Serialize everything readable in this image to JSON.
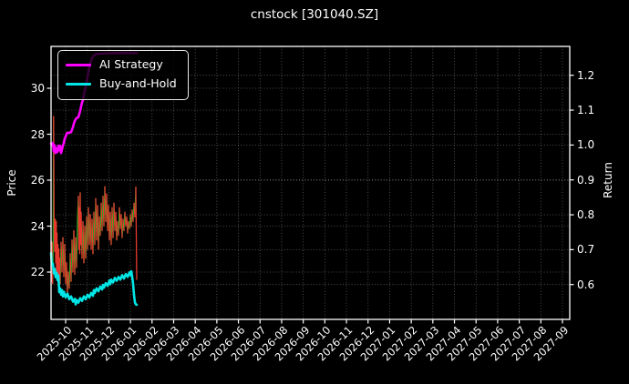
{
  "title": "cnstock [301040.SZ]",
  "colors": {
    "background": "#000000",
    "spine": "#ffffff",
    "grid": "rgba(255,255,255,0.38)",
    "tick_text": "#ffffff",
    "ai_strategy": "#ff00ff",
    "buy_and_hold": "#00e5e5",
    "price_up": "#21a421",
    "price_down": "#e8392e"
  },
  "legend": {
    "items": [
      {
        "label": "AI Strategy",
        "color": "#ff00ff"
      },
      {
        "label": "Buy-and-Hold",
        "color": "#00e5e5"
      }
    ]
  },
  "axes": {
    "y_left": {
      "label": "Price",
      "tick_labels": [
        "30",
        "28",
        "26",
        "24",
        "22"
      ],
      "tick_values": [
        30,
        28,
        26,
        24,
        22
      ],
      "range": [
        19.9,
        31.8
      ]
    },
    "y_right": {
      "label": "Return",
      "tick_labels": [
        "1.2",
        "1.1",
        "1.0",
        "0.9",
        "0.8",
        "0.7",
        "0.6"
      ],
      "tick_values": [
        1.2,
        1.1,
        1.0,
        0.9,
        0.8,
        0.7,
        0.6
      ],
      "range": [
        0.5,
        1.28
      ]
    },
    "x": {
      "tick_labels": [
        "2025-10",
        "2025-11",
        "2025-12",
        "2026-01",
        "2026-02",
        "2026-03",
        "2026-04",
        "2026-05",
        "2026-06",
        "2026-07",
        "2026-08",
        "2026-09",
        "2026-10",
        "2026-11",
        "2026-12",
        "2027-01",
        "2027-02",
        "2027-03",
        "2027-04",
        "2027-05",
        "2027-06",
        "2027-07",
        "2027-08",
        "2027-09"
      ]
    }
  },
  "chart_data": {
    "type": "line",
    "title": "cnstock [301040.SZ]",
    "xlabel": "",
    "grid": true,
    "legend_position": "upper-left",
    "series": [
      {
        "name": "Price",
        "y_axis": "left",
        "style": "direction-colored-line",
        "up_color": "#21a421",
        "down_color": "#e8392e",
        "u": [
          0,
          0.001,
          0.002,
          0.003,
          0.004,
          0.005,
          0.006,
          0.007,
          0.008,
          0.009,
          0.01,
          0.0105,
          0.0114,
          0.0123,
          0.0132,
          0.0141,
          0.0149,
          0.0158,
          0.0167,
          0.0176,
          0.0193,
          0.0211,
          0.0228,
          0.0246,
          0.0264,
          0.0281,
          0.0299,
          0.0316,
          0.0334,
          0.0352,
          0.0369,
          0.0387,
          0.0404,
          0.0422,
          0.0439,
          0.0457,
          0.0475,
          0.0492,
          0.051,
          0.0527,
          0.0536,
          0.0545,
          0.0554,
          0.0562,
          0.0571,
          0.058,
          0.0598,
          0.0615,
          0.0633,
          0.065,
          0.0668,
          0.0685,
          0.0703,
          0.0721,
          0.0738,
          0.0756,
          0.0773,
          0.0791,
          0.0808,
          0.0826,
          0.0844,
          0.0861,
          0.0879,
          0.0896,
          0.0914,
          0.0931,
          0.0949,
          0.0967,
          0.0984,
          0.1002,
          0.1019,
          0.1037,
          0.1054,
          0.1072,
          0.109,
          0.1107,
          0.1125,
          0.1142,
          0.116,
          0.1177,
          0.1195,
          0.1213,
          0.123,
          0.1248,
          0.1265,
          0.1283,
          0.13,
          0.1318,
          0.1336,
          0.1353,
          0.1371,
          0.1388,
          0.1406,
          0.1423,
          0.1441,
          0.1459,
          0.1476,
          0.1494,
          0.1511,
          0.1529,
          0.1546,
          0.1564,
          0.1582,
          0.1599,
          0.1617,
          0.1634,
          0.1652
        ],
        "values": [
          23.4,
          21.6,
          23.3,
          21.5,
          22.8,
          28.77,
          24.0,
          22.9,
          24.3,
          22.4,
          24.2,
          22.0,
          23.7,
          21.8,
          23.2,
          21.7,
          23.0,
          21.6,
          22.6,
          21.5,
          23.3,
          22.0,
          23.5,
          21.8,
          23.2,
          21.5,
          22.4,
          21.1,
          22.0,
          21.3,
          22.8,
          21.6,
          23.4,
          22.0,
          23.8,
          21.9,
          23.5,
          22.2,
          24.3,
          25.3,
          23.0,
          24.8,
          22.8,
          25.45,
          23.2,
          24.6,
          22.6,
          24.2,
          22.4,
          24.0,
          22.6,
          24.4,
          23.0,
          24.8,
          23.2,
          24.5,
          23.0,
          24.3,
          22.8,
          24.6,
          23.2,
          25.2,
          23.4,
          24.9,
          23.0,
          24.4,
          23.6,
          25.0,
          23.8,
          25.3,
          24.0,
          25.72,
          24.2,
          25.4,
          23.8,
          24.9,
          23.4,
          24.6,
          23.2,
          24.8,
          23.5,
          25.0,
          23.8,
          24.6,
          23.4,
          24.2,
          23.6,
          24.8,
          23.9,
          24.5,
          23.5,
          24.3,
          23.8,
          24.6,
          24.0,
          24.4,
          23.7,
          24.2,
          23.9,
          24.5,
          24.0,
          24.7,
          24.2,
          25.0,
          24.4,
          25.7,
          21.68
        ]
      },
      {
        "name": "AI Strategy",
        "y_axis": "right",
        "color": "#ff00ff",
        "u": [
          0,
          0.0018,
          0.0035,
          0.0053,
          0.007,
          0.0088,
          0.0105,
          0.0123,
          0.0141,
          0.0158,
          0.0176,
          0.0193,
          0.0211,
          0.0228,
          0.0246,
          0.0264,
          0.0281,
          0.0299,
          0.0316,
          0.0352,
          0.0387,
          0.0422,
          0.0439,
          0.0457,
          0.0475,
          0.0492,
          0.0527,
          0.0562,
          0.058,
          0.0598,
          0.0615,
          0.0633,
          0.065,
          0.0668,
          0.0685,
          0.0703,
          0.0721,
          0.0738,
          0.0756,
          0.0773,
          0.0791,
          0.0808,
          0.0826,
          0.0861,
          0.0949,
          0.1125,
          0.1388,
          0.1652
        ],
        "values": [
          1.004,
          0.999,
          1.006,
          0.982,
          0.999,
          0.977,
          0.99,
          0.98,
          0.998,
          0.985,
          0.998,
          0.977,
          0.987,
          0.998,
          1.006,
          1.019,
          1.024,
          1.032,
          1.035,
          1.035,
          1.037,
          1.051,
          1.061,
          1.069,
          1.074,
          1.077,
          1.08,
          1.098,
          1.111,
          1.122,
          1.129,
          1.143,
          1.158,
          1.166,
          1.182,
          1.195,
          1.21,
          1.223,
          1.234,
          1.241,
          1.249,
          1.254,
          1.257,
          1.26,
          1.262,
          1.263,
          1.264,
          1.264
        ]
      },
      {
        "name": "Buy-and-Hold",
        "y_axis": "right",
        "color": "#00e5e5",
        "u": [
          0,
          0.0018,
          0.0035,
          0.0053,
          0.007,
          0.0088,
          0.0105,
          0.0123,
          0.0141,
          0.0158,
          0.0176,
          0.0193,
          0.0211,
          0.0228,
          0.0246,
          0.0281,
          0.0316,
          0.0352,
          0.0387,
          0.0422,
          0.0457,
          0.0475,
          0.0492,
          0.0527,
          0.0562,
          0.0598,
          0.0633,
          0.0668,
          0.0703,
          0.0738,
          0.0773,
          0.0808,
          0.0826,
          0.0844,
          0.0879,
          0.0914,
          0.0949,
          0.0984,
          0.1002,
          0.1019,
          0.1054,
          0.109,
          0.1125,
          0.1142,
          0.116,
          0.1195,
          0.123,
          0.1265,
          0.13,
          0.1336,
          0.1371,
          0.1406,
          0.1441,
          0.1476,
          0.1511,
          0.1529,
          0.1546,
          0.1564,
          0.1582,
          0.1599,
          0.1617,
          0.1634,
          0.1652
        ],
        "values": [
          0.69,
          0.655,
          0.66,
          0.632,
          0.645,
          0.621,
          0.634,
          0.613,
          0.626,
          0.578,
          0.589,
          0.571,
          0.584,
          0.566,
          0.579,
          0.563,
          0.574,
          0.558,
          0.566,
          0.551,
          0.559,
          0.543,
          0.556,
          0.548,
          0.561,
          0.553,
          0.566,
          0.558,
          0.571,
          0.563,
          0.576,
          0.568,
          0.584,
          0.576,
          0.589,
          0.581,
          0.594,
          0.586,
          0.599,
          0.591,
          0.604,
          0.596,
          0.612,
          0.601,
          0.614,
          0.606,
          0.619,
          0.611,
          0.622,
          0.614,
          0.627,
          0.617,
          0.63,
          0.622,
          0.635,
          0.627,
          0.638,
          0.622,
          0.602,
          0.57,
          0.549,
          0.543,
          0.542
        ]
      }
    ]
  }
}
